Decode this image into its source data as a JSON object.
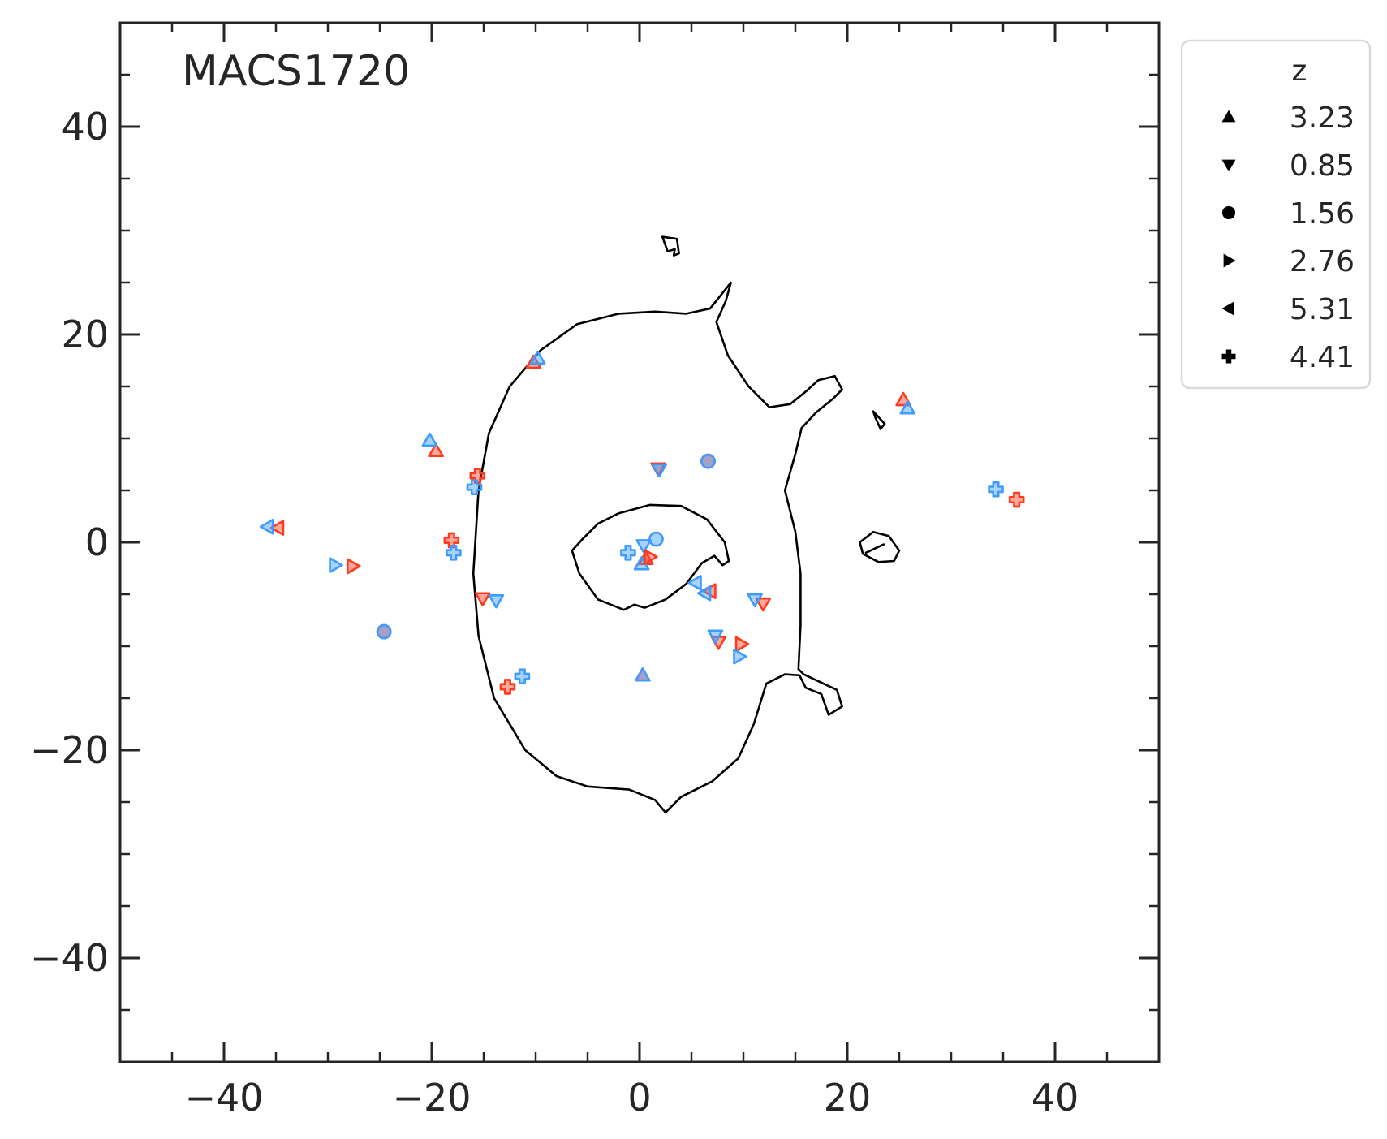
{
  "chart_data": {
    "type": "scatter",
    "title": "",
    "xlabel": "",
    "ylabel": "",
    "xlim": [
      -50,
      50
    ],
    "ylim": [
      -50,
      50
    ],
    "xticks": [
      -40,
      -20,
      0,
      20,
      40
    ],
    "yticks": [
      -40,
      -20,
      0,
      20,
      40
    ],
    "x_tick_labels": [
      "−40",
      "−20",
      "0",
      "20",
      "40"
    ],
    "y_tick_labels": [
      "−40",
      "−20",
      "0",
      "20",
      "40"
    ],
    "minor_tick_step": 5,
    "grid": false,
    "annotation": "MACS1720",
    "legend": {
      "title": "z",
      "placement": "outside-top-right",
      "entries": [
        {
          "label": "3.23",
          "marker": "triangle-up"
        },
        {
          "label": "0.85",
          "marker": "triangle-down"
        },
        {
          "label": "1.56",
          "marker": "circle"
        },
        {
          "label": "2.76",
          "marker": "triangle-right"
        },
        {
          "label": "5.31",
          "marker": "triangle-left"
        },
        {
          "label": "4.41",
          "marker": "plus"
        }
      ]
    },
    "colors": {
      "observed": "#ff3b1f",
      "predicted": "#3f9cff",
      "critical_curve": "#000000",
      "axes": "#262626"
    },
    "series": [
      {
        "z": "3.23",
        "marker": "triangle-up",
        "color": "#ff3b1f",
        "points": [
          [
            -10.2,
            17.3
          ],
          [
            -19.6,
            8.8
          ],
          [
            25.4,
            13.7
          ],
          [
            0.3,
            -12.8
          ],
          [
            0.6,
            -1.6
          ]
        ]
      },
      {
        "z": "3.23",
        "marker": "triangle-up",
        "color": "#3f9cff",
        "points": [
          [
            -9.8,
            17.7
          ],
          [
            -20.2,
            9.8
          ],
          [
            25.8,
            12.9
          ],
          [
            0.3,
            -12.8
          ],
          [
            0.2,
            -2.1
          ]
        ]
      },
      {
        "z": "0.85",
        "marker": "triangle-down",
        "color": "#ff3b1f",
        "points": [
          [
            1.8,
            7.1
          ],
          [
            -15.1,
            -5.4
          ],
          [
            11.9,
            -5.9
          ],
          [
            7.6,
            -9.6
          ]
        ]
      },
      {
        "z": "0.85",
        "marker": "triangle-down",
        "color": "#3f9cff",
        "points": [
          [
            1.9,
            7.0
          ],
          [
            -13.8,
            -5.6
          ],
          [
            11.1,
            -5.5
          ],
          [
            7.3,
            -9.0
          ],
          [
            0.4,
            -0.3
          ]
        ]
      },
      {
        "z": "1.56",
        "marker": "circle",
        "color": "#ff3b1f",
        "points": [
          [
            6.6,
            7.8
          ],
          [
            -24.6,
            -8.6
          ]
        ]
      },
      {
        "z": "1.56",
        "marker": "circle",
        "color": "#3f9cff",
        "points": [
          [
            6.6,
            7.8
          ],
          [
            -24.6,
            -8.6
          ],
          [
            1.6,
            0.3
          ]
        ]
      },
      {
        "z": "2.76",
        "marker": "triangle-right",
        "color": "#ff3b1f",
        "points": [
          [
            -27.6,
            -2.3
          ],
          [
            9.8,
            -9.8
          ],
          [
            1.0,
            -1.4
          ]
        ]
      },
      {
        "z": "2.76",
        "marker": "triangle-right",
        "color": "#3f9cff",
        "points": [
          [
            -29.3,
            -2.2
          ],
          [
            9.6,
            -11.0
          ]
        ]
      },
      {
        "z": "5.31",
        "marker": "triangle-left",
        "color": "#ff3b1f",
        "points": [
          [
            -34.8,
            1.4
          ],
          [
            6.8,
            -4.7
          ]
        ]
      },
      {
        "z": "5.31",
        "marker": "triangle-left",
        "color": "#3f9cff",
        "points": [
          [
            -35.8,
            1.5
          ],
          [
            5.4,
            -3.9
          ],
          [
            6.3,
            -4.9
          ]
        ]
      },
      {
        "z": "4.41",
        "marker": "plus",
        "color": "#ff3b1f",
        "points": [
          [
            -15.6,
            6.4
          ],
          [
            -18.1,
            0.2
          ],
          [
            -12.7,
            -13.9
          ],
          [
            36.3,
            4.1
          ]
        ]
      },
      {
        "z": "4.41",
        "marker": "plus",
        "color": "#3f9cff",
        "points": [
          [
            -15.9,
            5.3
          ],
          [
            -17.9,
            -1.0
          ],
          [
            -11.3,
            -12.9
          ],
          [
            34.3,
            5.1
          ],
          [
            -1.1,
            -1.0
          ]
        ]
      }
    ],
    "critical_curves": [
      [
        [
          1.5,
          22.2
        ],
        [
          4.5,
          22.0
        ],
        [
          6.8,
          22.5
        ],
        [
          8.0,
          24.0
        ],
        [
          8.8,
          25.0
        ],
        [
          8.3,
          23.2
        ],
        [
          7.4,
          21.2
        ],
        [
          8.5,
          18.0
        ],
        [
          10.5,
          15.0
        ],
        [
          12.5,
          13.0
        ],
        [
          14.5,
          13.3
        ],
        [
          16.0,
          14.5
        ],
        [
          17.2,
          15.6
        ],
        [
          18.8,
          16.0
        ],
        [
          19.5,
          14.7
        ],
        [
          18.6,
          13.8
        ],
        [
          17.0,
          12.5
        ],
        [
          15.6,
          11.0
        ],
        [
          15.0,
          8.5
        ],
        [
          14.0,
          5.0
        ],
        [
          15.0,
          1.0
        ],
        [
          15.5,
          -3.0
        ],
        [
          15.5,
          -8.0
        ],
        [
          15.3,
          -12.2
        ],
        [
          15.8,
          -12.7
        ],
        [
          17.5,
          -13.5
        ],
        [
          19.0,
          -14.2
        ],
        [
          19.5,
          -15.8
        ],
        [
          18.2,
          -16.6
        ],
        [
          17.5,
          -14.6
        ],
        [
          16.0,
          -14.0
        ],
        [
          15.4,
          -12.8
        ],
        [
          14.0,
          -12.7
        ],
        [
          12.2,
          -13.6
        ],
        [
          11.0,
          -17.5
        ],
        [
          9.5,
          -20.8
        ],
        [
          7.0,
          -23.0
        ],
        [
          4.0,
          -24.5
        ],
        [
          2.5,
          -26.0
        ],
        [
          1.5,
          -24.8
        ],
        [
          -1.0,
          -23.8
        ],
        [
          -5.0,
          -23.5
        ],
        [
          -8.0,
          -22.5
        ],
        [
          -11.0,
          -20.0
        ],
        [
          -14.0,
          -15.0
        ],
        [
          -15.5,
          -9.0
        ],
        [
          -16.0,
          -3.0
        ],
        [
          -15.5,
          5.0
        ],
        [
          -14.5,
          10.5
        ],
        [
          -12.5,
          15.0
        ],
        [
          -9.5,
          18.5
        ],
        [
          -6.0,
          21.0
        ],
        [
          -2.0,
          22.0
        ],
        [
          1.5,
          22.2
        ]
      ],
      [
        [
          -5.5,
          0.3
        ],
        [
          -4.0,
          1.8
        ],
        [
          -2.0,
          2.8
        ],
        [
          1.0,
          3.6
        ],
        [
          4.0,
          3.5
        ],
        [
          6.5,
          2.2
        ],
        [
          8.2,
          0.0
        ],
        [
          8.6,
          -1.8
        ],
        [
          8.0,
          -2.2
        ],
        [
          7.2,
          -1.3
        ],
        [
          6.0,
          -2.0
        ],
        [
          4.5,
          -4.0
        ],
        [
          2.5,
          -5.5
        ],
        [
          0.5,
          -6.3
        ],
        [
          -0.5,
          -6.0
        ],
        [
          -1.5,
          -6.5
        ],
        [
          -4.0,
          -5.5
        ],
        [
          -5.8,
          -3.0
        ],
        [
          -6.5,
          -0.8
        ],
        [
          -5.5,
          0.3
        ]
      ],
      [
        [
          2.2,
          29.4
        ],
        [
          3.6,
          29.2
        ],
        [
          3.8,
          27.8
        ],
        [
          3.3,
          27.6
        ],
        [
          3.4,
          28.2
        ],
        [
          2.7,
          28.0
        ],
        [
          2.2,
          29.4
        ]
      ],
      [
        [
          22.5,
          12.6
        ],
        [
          23.6,
          11.4
        ],
        [
          23.2,
          10.9
        ],
        [
          22.7,
          12.0
        ],
        [
          22.5,
          12.6
        ]
      ],
      [
        [
          21.2,
          0.0
        ],
        [
          22.5,
          1.0
        ],
        [
          24.0,
          0.6
        ],
        [
          25.0,
          -0.8
        ],
        [
          24.5,
          -1.8
        ],
        [
          23.0,
          -1.9
        ],
        [
          21.5,
          -1.1
        ],
        [
          21.2,
          0.0
        ]
      ],
      [
        [
          21.8,
          -1.0
        ],
        [
          23.5,
          -0.2
        ]
      ]
    ]
  }
}
